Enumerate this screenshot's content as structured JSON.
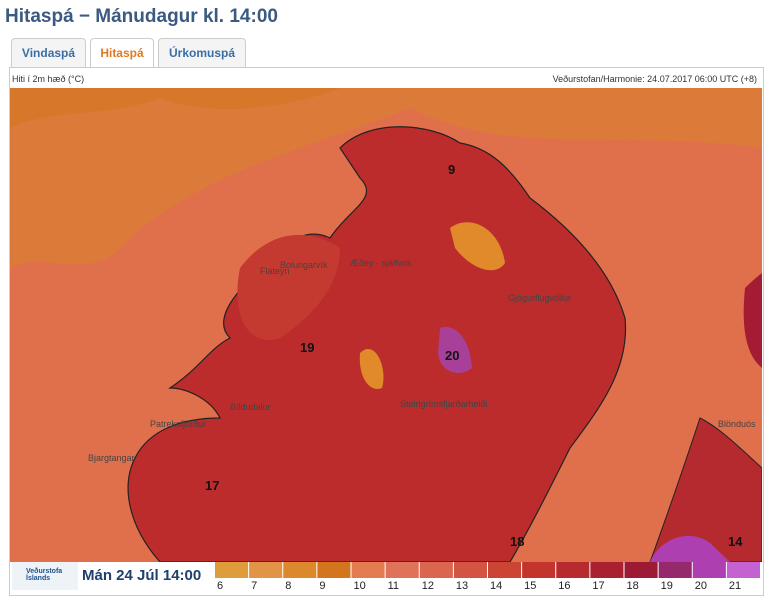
{
  "header": {
    "title": "Hitaspá − Mánudagur kl. 14:00"
  },
  "tabs": [
    "Vindaspá",
    "Hitaspá",
    "Úrkomuspá"
  ],
  "panel": {
    "variable": "Hiti í 2m hæð (°C)",
    "source": "Veðurstofan/Harmonie: 24.07.2017 06:00 UTC (+8)"
  },
  "map": {
    "places": [
      "Bolungarvík",
      "Flateyri",
      "Æðey - sjálfvirk",
      "Gjögurflugvöllur",
      "Bíldudalur",
      "Patreksfjörður",
      "Bjargtangar",
      "Steingrímsfjarðarheiði",
      "Blönduós"
    ],
    "temperatures": [
      "9",
      "20",
      "19",
      "17",
      "18",
      "14"
    ]
  },
  "footer": {
    "logo": "Veðurstofa Íslands",
    "time": "Mán 24 Júl 14:00"
  },
  "legend": {
    "ticks": [
      "6",
      "7",
      "8",
      "9",
      "10",
      "11",
      "12",
      "13",
      "14",
      "15",
      "16",
      "17",
      "18",
      "19",
      "20",
      "21"
    ],
    "colors": [
      "#de9c3c",
      "#e29446",
      "#dc882c",
      "#d3741f",
      "#e47c52",
      "#e0725a",
      "#db6650",
      "#d45444",
      "#cb4434",
      "#c2342c",
      "#b72a2d",
      "#ab2031",
      "#9d1a34",
      "#96286c",
      "#ad3fb0",
      "#c462d2"
    ]
  }
}
